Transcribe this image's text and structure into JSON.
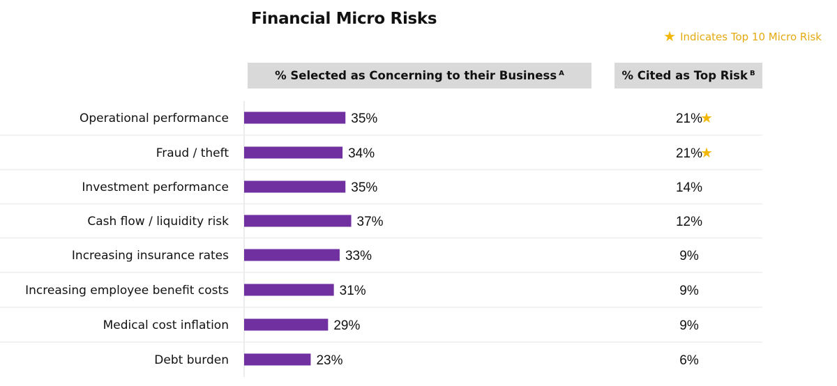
{
  "title": "Financial Micro Risks",
  "legend": {
    "icon": "star",
    "text": "Indicates Top 10 Micro Risk",
    "color": "#f2b705"
  },
  "headers": {
    "col1": "% Selected as Concerning to their Business",
    "col1_sup": "A",
    "col2": "% Cited as Top Risk",
    "col2_sup": "B"
  },
  "colors": {
    "bar": "#7030a0",
    "star": "#f2b705",
    "header_bg": "#d9d9d9"
  },
  "chart_data": {
    "type": "bar",
    "orientation": "horizontal",
    "categories": [
      "Operational performance",
      "Fraud / theft",
      "Investment performance",
      "Cash flow / liquidity risk",
      "Increasing insurance rates",
      "Increasing employee benefit costs",
      "Medical cost inflation",
      "Debt burden"
    ],
    "series": [
      {
        "values": [
          35,
          34,
          35,
          37,
          33,
          31,
          29,
          23
        ]
      }
    ],
    "value_labels": [
      "35%",
      "34%",
      "35%",
      "37%",
      "33%",
      "31%",
      "29%",
      "23%"
    ],
    "top_risk": [
      "21%",
      "21%",
      "14%",
      "12%",
      "9%",
      "9%",
      "9%",
      "6%"
    ],
    "top_10_flag": [
      true,
      true,
      false,
      false,
      false,
      false,
      false,
      false
    ]
  }
}
